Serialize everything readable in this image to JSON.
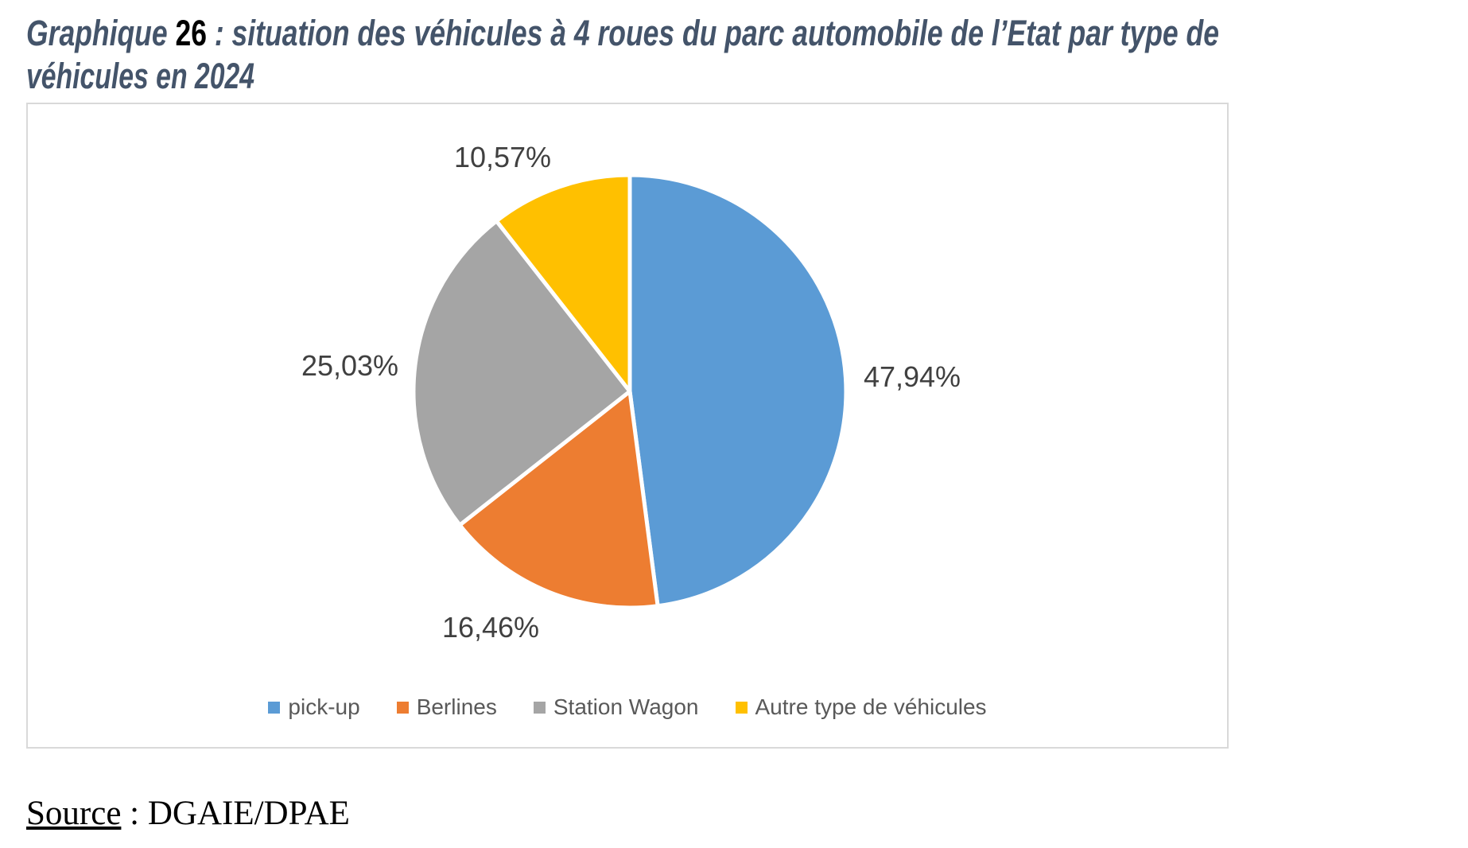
{
  "title": {
    "prefix": "Graphique ",
    "number": "26",
    "rest": " : situation des véhicules à 4 roues du parc automobile de l’Etat par type de",
    "line2": "véhicules en 2024"
  },
  "chart_data": {
    "type": "pie",
    "categories": [
      "pick-up",
      "Berlines",
      "Station Wagon",
      "Autre type de véhicules"
    ],
    "values": [
      47.94,
      16.46,
      25.03,
      10.57
    ],
    "data_labels": [
      "47,94%",
      "16,46%",
      "25,03%",
      "10,57%"
    ],
    "colors": [
      "#5B9BD5",
      "#ED7D31",
      "#A5A5A5",
      "#FFC000"
    ],
    "start_angle_deg": 0,
    "direction": "clockwise",
    "label_style": "outside-end",
    "legend_position": "bottom",
    "title": "Graphique 26 : situation des véhicules à 4 roues du parc automobile de l’Etat par type de véhicules en 2024"
  },
  "source": {
    "label": "Source",
    "separator": " : ",
    "value": "DGAIE/DPAE"
  }
}
